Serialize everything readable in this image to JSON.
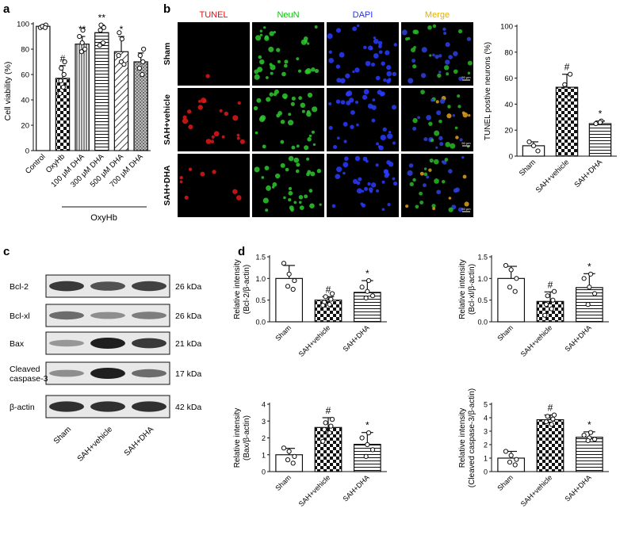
{
  "panels": {
    "a": {
      "label": "a",
      "ylabel": "Cell viability (%)",
      "yticks": [
        "0",
        "20",
        "40",
        "60",
        "80",
        "100"
      ],
      "group_label": "OxyHb"
    },
    "b": {
      "label": "b",
      "micro_columns": [
        "TUNEL",
        "NeuN",
        "DAPI",
        "Merge"
      ],
      "micro_rows": [
        "Sham",
        "SAH+vehicle",
        "SAH+DHA"
      ],
      "scale_text": "50 µm",
      "ylabel": "TUNEL postive neurons (%)",
      "yticks": [
        "0",
        "20",
        "40",
        "60",
        "80",
        "100"
      ]
    },
    "c": {
      "label": "c",
      "rows": [
        {
          "name": "Bcl-2",
          "size": "26 kDa"
        },
        {
          "name": "Bcl-xl",
          "size": "26 kDa"
        },
        {
          "name": "Bax",
          "size": "21 kDa"
        },
        {
          "name": "Cleaved\ncaspase-3",
          "size": "17 kDa"
        },
        {
          "name": "β-actin",
          "size": "42 kDa"
        }
      ],
      "lanes": [
        "Sham",
        "SAH+vehicle",
        "SAH+DHA"
      ],
      "band_intensity": [
        [
          0.85,
          0.7,
          0.8
        ],
        [
          0.55,
          0.35,
          0.45
        ],
        [
          0.3,
          1.0,
          0.85
        ],
        [
          0.35,
          1.0,
          0.55
        ],
        [
          0.9,
          0.9,
          0.9
        ]
      ]
    },
    "d": {
      "label": "d"
    }
  },
  "chart_data": [
    {
      "id": "a",
      "type": "bar",
      "categories": [
        "Control",
        "OxyHb",
        "100 μM DHA",
        "300 μM DHA",
        "500 μM DHA",
        "700 μM DHA"
      ],
      "values": [
        98,
        57,
        84,
        93,
        78,
        70
      ],
      "errors": [
        1,
        10,
        6,
        6,
        12,
        7
      ],
      "annotations": [
        "",
        "#",
        "**",
        "**",
        "*",
        ""
      ],
      "points": [
        [
          97,
          98,
          99,
          98,
          97
        ],
        [
          70,
          65,
          60,
          55,
          50,
          45
        ],
        [
          95,
          90,
          85,
          80,
          78
        ],
        [
          99,
          97,
          95,
          85,
          83
        ],
        [
          93,
          88,
          75,
          70,
          68
        ],
        [
          80,
          75,
          70,
          65,
          60
        ]
      ],
      "patterns": [
        "white",
        "checker",
        "vlines",
        "hlines",
        "diag",
        "dots"
      ],
      "ylim": [
        0,
        100
      ]
    },
    {
      "id": "b",
      "type": "bar",
      "categories": [
        "Sham",
        "SAH+vehicle",
        "SAH+DHA"
      ],
      "values": [
        8,
        53,
        25
      ],
      "errors": [
        3,
        10,
        2
      ],
      "annotations": [
        "",
        "#",
        "*"
      ],
      "points": [
        [
          11,
          8,
          4
        ],
        [
          63,
          55,
          45
        ],
        [
          27,
          25,
          26
        ]
      ],
      "patterns": [
        "white",
        "checker",
        "hlines"
      ],
      "ylim": [
        0,
        100
      ]
    },
    {
      "id": "d1",
      "type": "bar",
      "ylabel": "Relative intensity\n(Bcl-2/β-actin)",
      "categories": [
        "Sham",
        "SAH+vehicle",
        "SAH+DHA"
      ],
      "values": [
        1.0,
        0.5,
        0.68
      ],
      "errors": [
        0.3,
        0.08,
        0.27
      ],
      "annotations": [
        "",
        "#",
        "*"
      ],
      "points": [
        [
          1.35,
          1.1,
          0.95,
          0.82,
          0.75
        ],
        [
          0.65,
          0.58,
          0.52,
          0.45,
          0.4,
          0.38
        ],
        [
          0.95,
          0.8,
          0.7,
          0.6,
          0.55
        ]
      ],
      "patterns": [
        "white",
        "checker",
        "hlines"
      ],
      "ylim": [
        0,
        1.5
      ],
      "yticks": [
        "0.0",
        "0.5",
        "1.0",
        "1.5"
      ]
    },
    {
      "id": "d2",
      "type": "bar",
      "ylabel": "Relative intensity\n(Bcl-xl/β-actin)",
      "categories": [
        "Sham",
        "SAH+vehicle",
        "SAH+DHA"
      ],
      "values": [
        1.0,
        0.47,
        0.79
      ],
      "errors": [
        0.28,
        0.22,
        0.32
      ],
      "annotations": [
        "",
        "#",
        "*"
      ],
      "points": [
        [
          1.3,
          1.2,
          1.0,
          0.8,
          0.7
        ],
        [
          0.7,
          0.6,
          0.5,
          0.4,
          0.3,
          0.15
        ],
        [
          1.1,
          1.0,
          0.8,
          0.65,
          0.4
        ]
      ],
      "patterns": [
        "white",
        "checker",
        "hlines"
      ],
      "ylim": [
        0,
        1.5
      ],
      "yticks": [
        "0.0",
        "0.5",
        "1.0",
        "1.5"
      ]
    },
    {
      "id": "d3",
      "type": "bar",
      "ylabel": "Relative intensity\n(Bax/β-actin)",
      "categories": [
        "Sham",
        "SAH+vehicle",
        "SAH+DHA"
      ],
      "values": [
        1.0,
        2.62,
        1.62
      ],
      "errors": [
        0.38,
        0.58,
        0.7
      ],
      "annotations": [
        "",
        "#",
        "*"
      ],
      "points": [
        [
          1.4,
          1.2,
          0.9,
          0.7,
          0.5
        ],
        [
          3.1,
          2.9,
          2.7,
          2.5,
          2.3,
          1.8
        ],
        [
          2.3,
          2.0,
          1.6,
          1.3,
          0.9
        ]
      ],
      "patterns": [
        "white",
        "checker",
        "hlines"
      ],
      "ylim": [
        0,
        4
      ],
      "yticks": [
        "0",
        "1",
        "2",
        "3",
        "4"
      ]
    },
    {
      "id": "d4",
      "type": "bar",
      "ylabel": "Relative intensity\n(Cleaved caspase-3/β-actin)",
      "categories": [
        "Sham",
        "SAH+vehicle",
        "SAH+DHA"
      ],
      "values": [
        1.0,
        3.85,
        2.55
      ],
      "errors": [
        0.5,
        0.35,
        0.4
      ],
      "annotations": [
        "",
        "#",
        "*"
      ],
      "points": [
        [
          1.5,
          1.2,
          0.9,
          0.7,
          0.5
        ],
        [
          4.2,
          4.1,
          3.9,
          3.7,
          3.5
        ],
        [
          2.9,
          2.7,
          2.5,
          2.4,
          2.3
        ]
      ],
      "patterns": [
        "white",
        "checker",
        "hlines"
      ],
      "ylim": [
        0,
        5
      ],
      "yticks": [
        "0",
        "1",
        "2",
        "3",
        "4",
        "5"
      ]
    }
  ]
}
